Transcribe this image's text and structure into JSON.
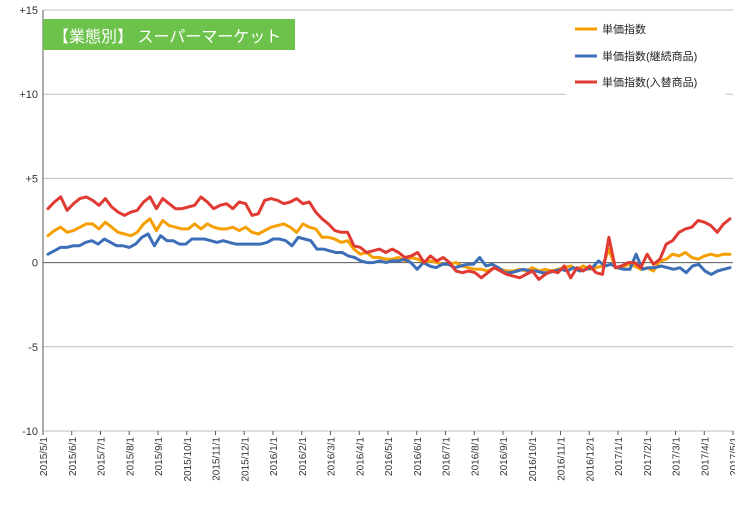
{
  "chart_data": {
    "type": "line",
    "title": "【業態別】 スーパーマーケット",
    "title_bg": "#6CC24A",
    "ylim": [
      -10,
      15
    ],
    "yticks": [
      {
        "value": 15,
        "label": "+15"
      },
      {
        "value": 10,
        "label": "+10"
      },
      {
        "value": 5,
        "label": "+5"
      },
      {
        "value": 0,
        "label": "0"
      },
      {
        "value": -5,
        "label": "-5"
      },
      {
        "value": -10,
        "label": "-10"
      }
    ],
    "x_tick_labels": [
      "2015/5/1",
      "2015/6/1",
      "2015/7/1",
      "2015/8/1",
      "2015/9/1",
      "2015/10/1",
      "2015/11/1",
      "2015/12/1",
      "2016/1/1",
      "2016/2/1",
      "2016/3/1",
      "2016/4/1",
      "2016/5/1",
      "2016/6/1",
      "2016/7/1",
      "2016/8/1",
      "2016/9/1",
      "2016/10/1",
      "2016/11/1",
      "2016/12/1",
      "2017/1/1",
      "2017/2/1",
      "2017/3/1",
      "2017/4/1",
      "2017/5/1"
    ],
    "grid": "horizontal",
    "legend_position": "top-right",
    "series": [
      {
        "name": "単価指数",
        "color": "#F5A000",
        "values": [
          1.6,
          1.9,
          2.1,
          1.8,
          1.9,
          2.1,
          2.3,
          2.3,
          2.0,
          2.4,
          2.1,
          1.8,
          1.7,
          1.6,
          1.8,
          2.3,
          2.6,
          1.9,
          2.5,
          2.2,
          2.1,
          2.0,
          2.0,
          2.3,
          2.0,
          2.3,
          2.1,
          2.0,
          2.0,
          2.1,
          1.9,
          2.1,
          1.8,
          1.7,
          1.9,
          2.1,
          2.2,
          2.3,
          2.1,
          1.8,
          2.3,
          2.1,
          2.0,
          1.5,
          1.5,
          1.4,
          1.2,
          1.3,
          0.8,
          0.5,
          0.6,
          0.3,
          0.3,
          0.2,
          0.2,
          0.3,
          0.1,
          0.3,
          0.2,
          0.0,
          0.1,
          0.0,
          -0.1,
          -0.1,
          0.0,
          -0.2,
          -0.3,
          -0.4,
          -0.4,
          -0.5,
          -0.3,
          -0.4,
          -0.5,
          -0.5,
          -0.4,
          -0.5,
          -0.3,
          -0.5,
          -0.4,
          -0.5,
          -0.4,
          -0.3,
          -0.2,
          -0.4,
          -0.2,
          -0.4,
          -0.3,
          -0.2,
          0.8,
          -0.3,
          -0.3,
          -0.1,
          -0.2,
          -0.4,
          -0.3,
          -0.5,
          0.1,
          0.2,
          0.5,
          0.4,
          0.6,
          0.3,
          0.2,
          0.4,
          0.5,
          0.4,
          0.5,
          0.5
        ]
      },
      {
        "name": "単価指数(継続商品)",
        "color": "#3D6EB8",
        "values": [
          0.5,
          0.7,
          0.9,
          0.9,
          1.0,
          1.0,
          1.2,
          1.3,
          1.1,
          1.4,
          1.2,
          1.0,
          1.0,
          0.9,
          1.1,
          1.5,
          1.7,
          1.0,
          1.6,
          1.3,
          1.3,
          1.1,
          1.1,
          1.4,
          1.4,
          1.4,
          1.3,
          1.2,
          1.3,
          1.2,
          1.1,
          1.1,
          1.1,
          1.1,
          1.1,
          1.2,
          1.4,
          1.4,
          1.3,
          1.0,
          1.5,
          1.4,
          1.3,
          0.8,
          0.8,
          0.7,
          0.6,
          0.6,
          0.4,
          0.3,
          0.1,
          0.0,
          0.0,
          0.1,
          0.0,
          0.1,
          0.1,
          0.2,
          0.0,
          -0.4,
          0.0,
          -0.2,
          -0.3,
          -0.1,
          -0.1,
          -0.3,
          -0.2,
          -0.1,
          -0.1,
          0.3,
          -0.2,
          -0.1,
          -0.3,
          -0.6,
          -0.6,
          -0.5,
          -0.4,
          -0.5,
          -0.5,
          -0.6,
          -0.6,
          -0.5,
          -0.4,
          -0.5,
          -0.3,
          -0.5,
          -0.4,
          -0.3,
          0.1,
          -0.2,
          -0.1,
          -0.3,
          -0.4,
          -0.4,
          0.5,
          -0.4,
          -0.3,
          -0.3,
          -0.2,
          -0.3,
          -0.4,
          -0.3,
          -0.6,
          -0.2,
          -0.1,
          -0.5,
          -0.7,
          -0.5,
          -0.4,
          -0.3
        ]
      },
      {
        "name": "単価指数(入替商品)",
        "color": "#E03A33",
        "values": [
          3.2,
          3.6,
          3.9,
          3.1,
          3.5,
          3.8,
          3.9,
          3.7,
          3.4,
          3.8,
          3.3,
          3.0,
          2.8,
          3.0,
          3.1,
          3.6,
          3.9,
          3.2,
          3.8,
          3.5,
          3.2,
          3.2,
          3.3,
          3.4,
          3.9,
          3.6,
          3.2,
          3.4,
          3.5,
          3.2,
          3.6,
          3.5,
          2.8,
          2.9,
          3.7,
          3.8,
          3.7,
          3.5,
          3.6,
          3.8,
          3.5,
          3.6,
          3.0,
          2.6,
          2.3,
          1.9,
          1.8,
          1.8,
          1.0,
          0.9,
          0.6,
          0.7,
          0.8,
          0.6,
          0.8,
          0.6,
          0.3,
          0.4,
          0.6,
          0.0,
          0.4,
          0.1,
          0.3,
          0.0,
          -0.5,
          -0.6,
          -0.5,
          -0.6,
          -0.9,
          -0.6,
          -0.3,
          -0.5,
          -0.7,
          -0.8,
          -0.9,
          -0.7,
          -0.5,
          -1.0,
          -0.7,
          -0.5,
          -0.6,
          -0.2,
          -0.9,
          -0.3,
          -0.5,
          -0.2,
          -0.6,
          -0.7,
          1.5,
          -0.3,
          -0.2,
          0.0,
          0.0,
          -0.3,
          0.5,
          -0.1,
          0.2,
          1.1,
          1.3,
          1.8,
          2.0,
          2.1,
          2.5,
          2.4,
          2.2,
          1.8,
          2.3,
          2.6
        ]
      }
    ]
  }
}
